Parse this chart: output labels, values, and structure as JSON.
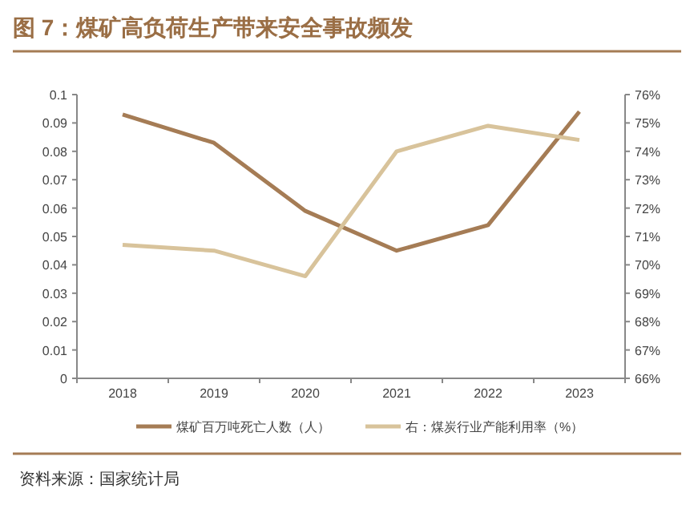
{
  "chart_data": {
    "type": "line",
    "title": "图 7：煤矿高负荷生产带来安全事故频发",
    "categories": [
      "2018",
      "2019",
      "2020",
      "2021",
      "2022",
      "2023"
    ],
    "series": [
      {
        "name": "煤矿百万吨死亡人数（人）",
        "color": "#a57c55",
        "values": [
          0.093,
          0.083,
          0.059,
          0.045,
          0.054,
          0.094
        ]
      },
      {
        "name": "右：煤炭行业产能利用率（%）",
        "color": "#d8c39b",
        "axis": "y2",
        "values": [
          70.7,
          70.5,
          69.6,
          74.0,
          74.9,
          74.4
        ]
      }
    ],
    "ylim": [
      0,
      0.1
    ],
    "yticks": [
      0,
      0.01,
      0.02,
      0.03,
      0.04,
      0.05,
      0.06,
      0.07,
      0.08,
      0.09,
      0.1
    ],
    "y2lim": [
      66,
      76
    ],
    "y2ticks": [
      {
        "value": 66,
        "label": "66%"
      },
      {
        "value": 67,
        "label": "67%"
      },
      {
        "value": 68,
        "label": "68%"
      },
      {
        "value": 69,
        "label": "69%"
      },
      {
        "value": 70,
        "label": "70%"
      },
      {
        "value": 71,
        "label": "71%"
      },
      {
        "value": 72,
        "label": "72%"
      },
      {
        "value": 73,
        "label": "73%"
      },
      {
        "value": 74,
        "label": "74%"
      },
      {
        "value": 75,
        "label": "75%"
      },
      {
        "value": 76,
        "label": "76%"
      }
    ],
    "legend": "bottom",
    "grid": false,
    "line_style": "solid",
    "marker": "none",
    "annotations": [
      "资料来源：国家统计局"
    ]
  }
}
